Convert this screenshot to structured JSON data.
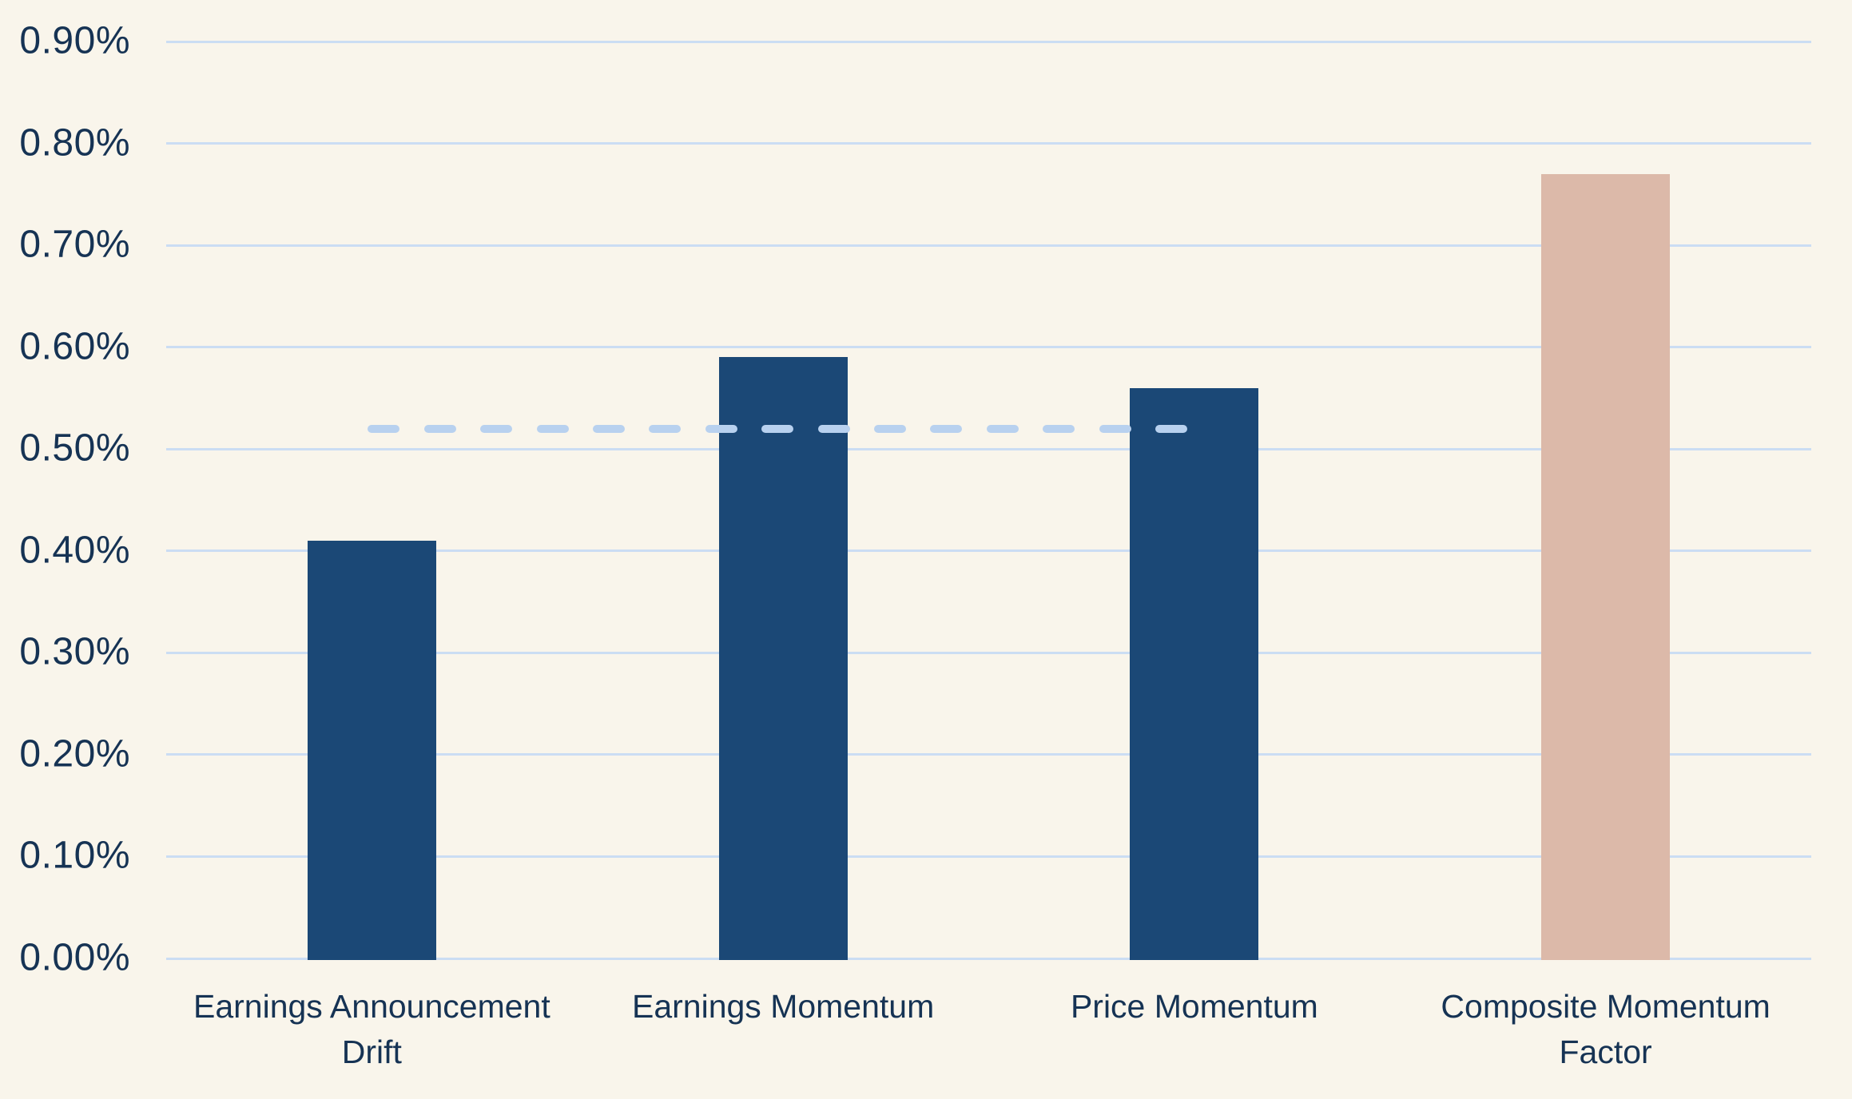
{
  "chart_data": {
    "type": "bar",
    "title": "",
    "xlabel": "",
    "ylabel": "",
    "categories": [
      "Earnings Announcement Drift",
      "Earnings Momentum",
      "Price Momentum",
      "Composite Momentum Factor"
    ],
    "values": [
      0.41,
      0.59,
      0.56,
      0.77
    ],
    "unit": "%",
    "bar_colors": [
      "#1B4876",
      "#1B4876",
      "#1B4876",
      "#DCB9A9"
    ],
    "y_axis": {
      "min": 0.0,
      "max": 0.9,
      "step": 0.1,
      "tick_labels": [
        "0.00%",
        "0.10%",
        "0.20%",
        "0.30%",
        "0.40%",
        "0.50%",
        "0.60%",
        "0.70%",
        "0.80%",
        "0.90%"
      ]
    },
    "reference_line": {
      "value": 0.52,
      "style": "dashed",
      "color": "#B8D1EF",
      "span_categories": [
        0,
        2
      ]
    },
    "grid": true,
    "legend": false
  },
  "colors": {
    "background": "#F9F5EB",
    "bar_navy": "#1B4876",
    "bar_pink": "#DCB9A9",
    "gridline": "#CBDDF3",
    "dashed_line": "#B8D1EF",
    "text": "#163354"
  }
}
